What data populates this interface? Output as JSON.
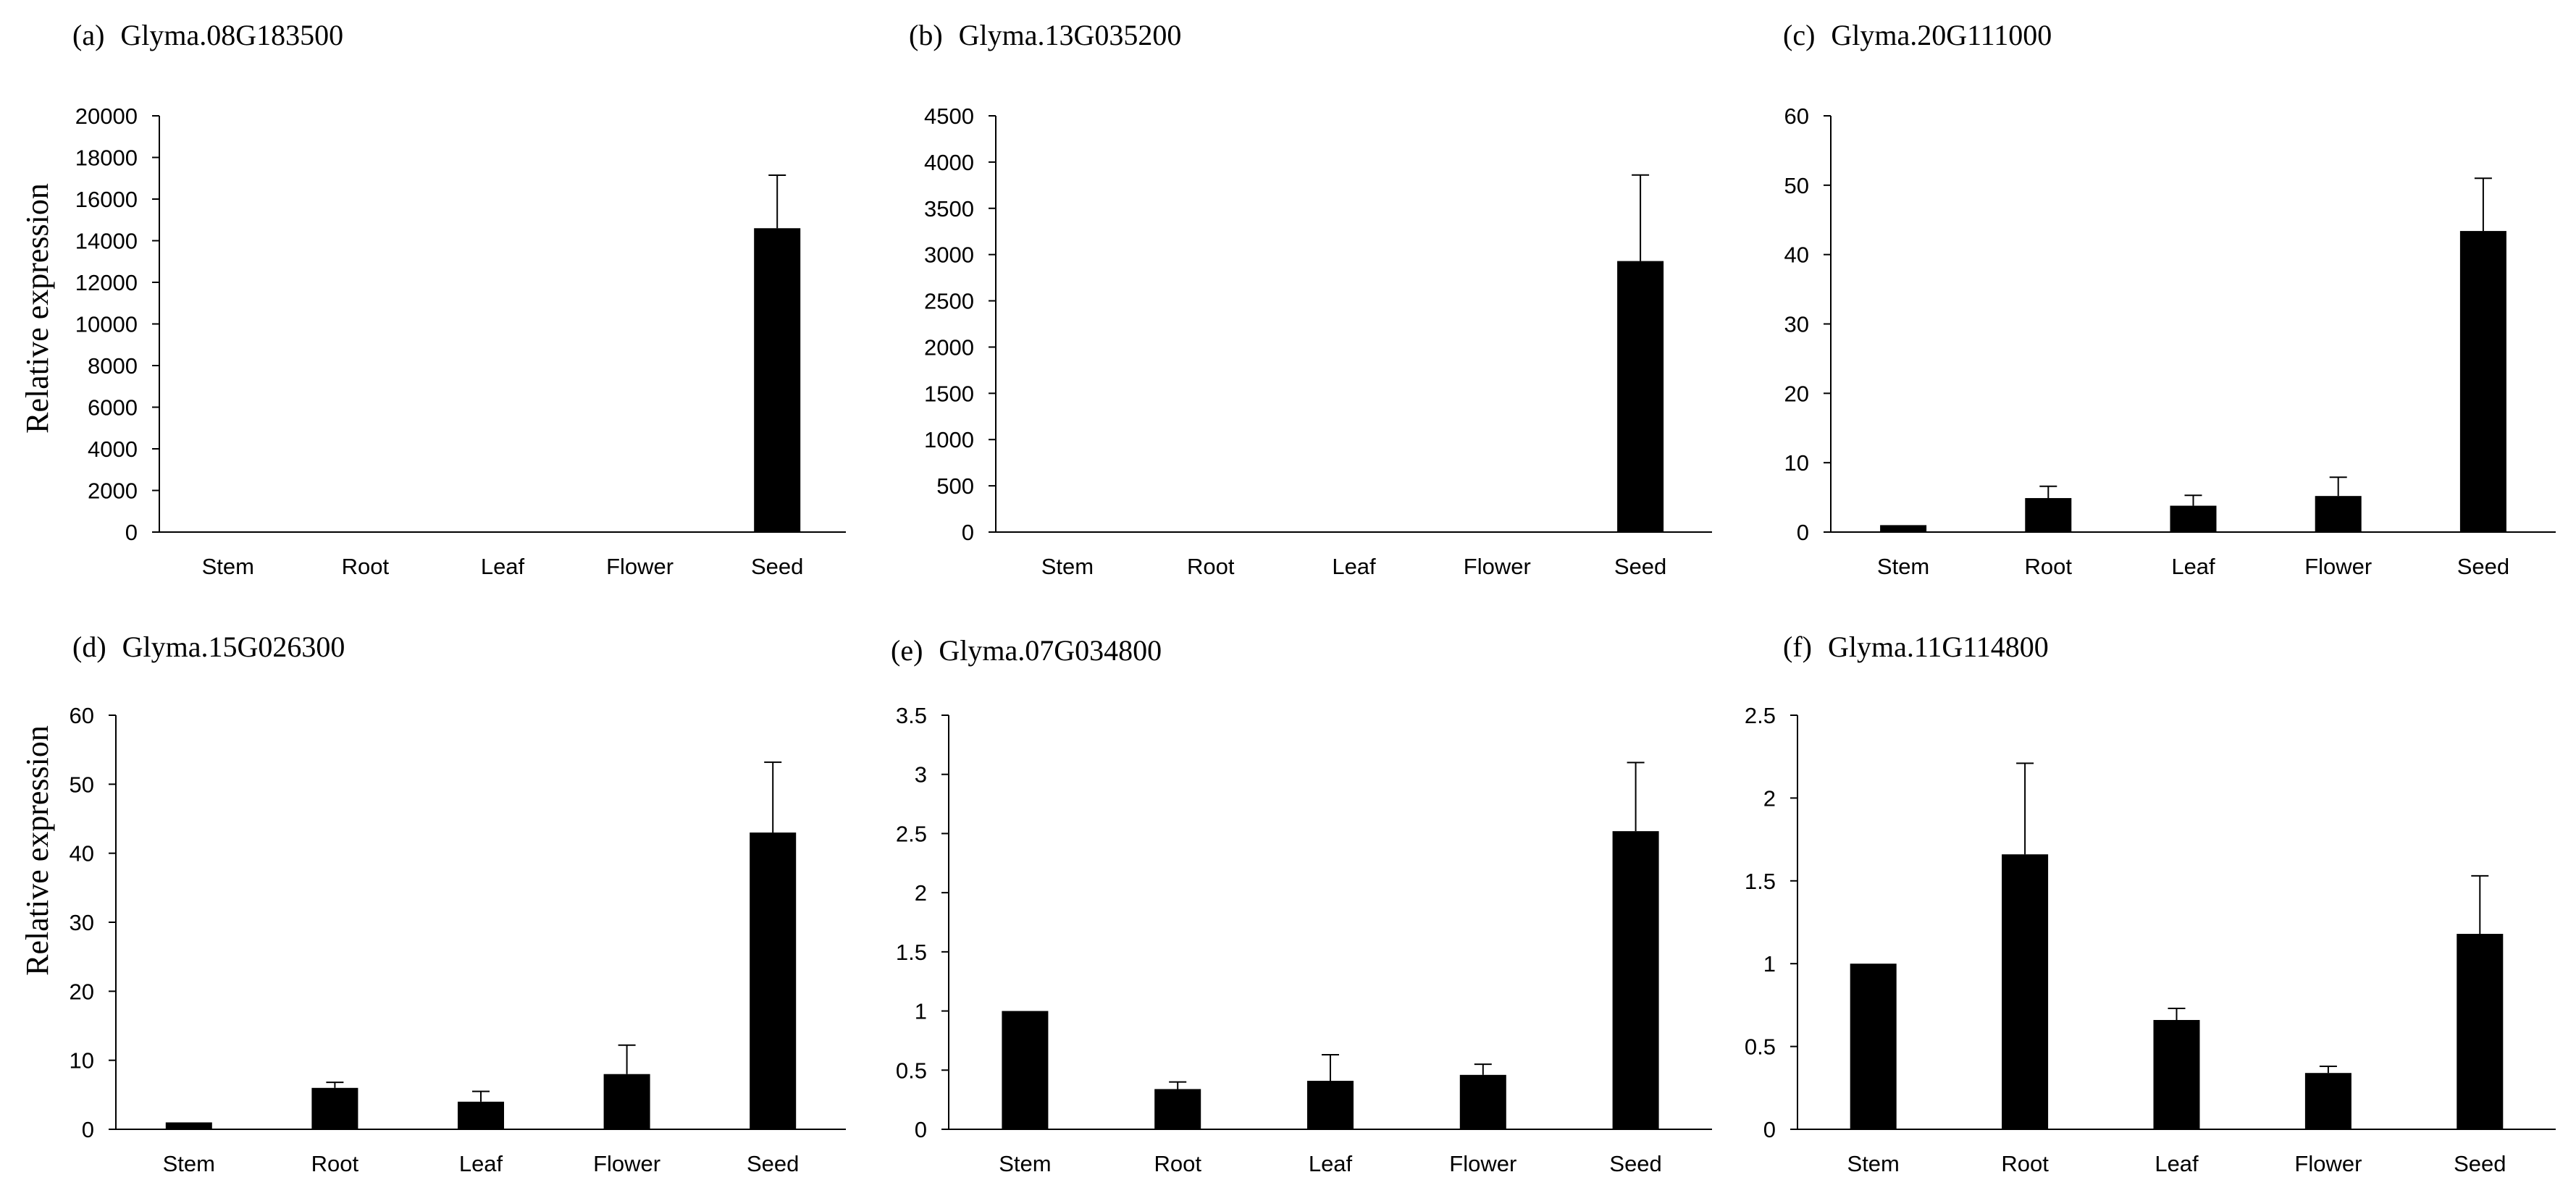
{
  "chart_data": [
    {
      "type": "bar",
      "panel": "(a)",
      "title": "Glyma.08G183500",
      "ylabel": "Relative expression",
      "xlabel": "",
      "categories": [
        "Stem",
        "Root",
        "Leaf",
        "Flower",
        "Seed"
      ],
      "values": [
        1,
        1,
        1,
        1,
        14600
      ],
      "errors": [
        0,
        0,
        0,
        0,
        2550
      ],
      "ylim": [
        0,
        20000
      ],
      "yticks": [
        "0",
        "2000",
        "4000",
        "6000",
        "8000",
        "10000",
        "12000",
        "14000",
        "16000",
        "18000",
        "20000"
      ],
      "tickvals": [
        0,
        2000,
        4000,
        6000,
        8000,
        10000,
        12000,
        14000,
        16000,
        18000,
        20000
      ]
    },
    {
      "type": "bar",
      "panel": "(b)",
      "title": "Glyma.13G035200",
      "ylabel": "",
      "xlabel": "",
      "categories": [
        "Stem",
        "Root",
        "Leaf",
        "Flower",
        "Seed"
      ],
      "values": [
        1,
        1,
        1,
        1,
        2930
      ],
      "errors": [
        0,
        0,
        0,
        0,
        930
      ],
      "ylim": [
        0,
        4500
      ],
      "yticks": [
        "0",
        "500",
        "1000",
        "1500",
        "2000",
        "2500",
        "3000",
        "3500",
        "4000",
        "4500"
      ],
      "tickvals": [
        0,
        500,
        1000,
        1500,
        2000,
        2500,
        3000,
        3500,
        4000,
        4500
      ]
    },
    {
      "type": "bar",
      "panel": "(c)",
      "title": "Glyma.20G111000",
      "ylabel": "",
      "xlabel": "",
      "categories": [
        "Stem",
        "Root",
        "Leaf",
        "Flower",
        "Seed"
      ],
      "values": [
        1,
        4.9,
        3.8,
        5.2,
        43.4
      ],
      "errors": [
        0,
        1.7,
        1.5,
        2.7,
        7.6
      ],
      "ylim": [
        0,
        60
      ],
      "yticks": [
        "0",
        "10",
        "20",
        "30",
        "40",
        "50",
        "60"
      ],
      "tickvals": [
        0,
        10,
        20,
        30,
        40,
        50,
        60
      ]
    },
    {
      "type": "bar",
      "panel": "(d)",
      "title": "Glyma.15G026300",
      "ylabel": "Relative expression",
      "xlabel": "",
      "categories": [
        "Stem",
        "Root",
        "Leaf",
        "Flower",
        "Seed"
      ],
      "values": [
        1,
        6,
        4,
        8,
        43
      ],
      "errors": [
        0,
        0.8,
        1.5,
        4.2,
        10.2
      ],
      "ylim": [
        0,
        60
      ],
      "yticks": [
        "0",
        "10",
        "20",
        "30",
        "40",
        "50",
        "60"
      ],
      "tickvals": [
        0,
        10,
        20,
        30,
        40,
        50,
        60
      ]
    },
    {
      "type": "bar",
      "panel": "(e)",
      "title": "Glyma.07G034800",
      "ylabel": "",
      "xlabel": "",
      "categories": [
        "Stem",
        "Root",
        "Leaf",
        "Flower",
        "Seed"
      ],
      "values": [
        1,
        0.34,
        0.41,
        0.46,
        2.52
      ],
      "errors": [
        0,
        0.06,
        0.22,
        0.09,
        0.58
      ],
      "ylim": [
        0,
        3.5
      ],
      "yticks": [
        "0",
        "0.5",
        "1",
        "1.5",
        "2",
        "2.5",
        "3",
        "3.5"
      ],
      "tickvals": [
        0,
        0.5,
        1,
        1.5,
        2,
        2.5,
        3,
        3.5
      ]
    },
    {
      "type": "bar",
      "panel": "(f)",
      "title": "Glyma.11G114800",
      "ylabel": "",
      "xlabel": "",
      "categories": [
        "Stem",
        "Root",
        "Leaf",
        "Flower",
        "Seed"
      ],
      "values": [
        1,
        1.66,
        0.66,
        0.34,
        1.18
      ],
      "errors": [
        0,
        0.55,
        0.07,
        0.04,
        0.35
      ],
      "ylim": [
        0,
        2.5
      ],
      "yticks": [
        "0",
        "0.5",
        "1",
        "1.5",
        "2",
        "2.5"
      ],
      "tickvals": [
        0,
        0.5,
        1,
        1.5,
        2,
        2.5
      ]
    }
  ],
  "colors": {
    "bar": "#000000",
    "axis": "#000000",
    "background": "#ffffff"
  }
}
